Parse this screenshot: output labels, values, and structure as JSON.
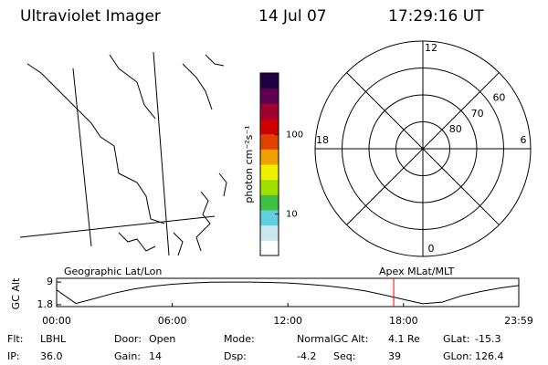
{
  "header": {
    "title": "Ultraviolet Imager",
    "date": "14 Jul 07",
    "time": "17:29:16 UT"
  },
  "colorbar": {
    "label": "photon cm⁻²s⁻¹",
    "log": true,
    "clim": [
      3,
      600
    ],
    "ticks": [
      10,
      100
    ]
  },
  "polar": {
    "rlim": [
      90,
      50
    ],
    "mlt_labels": [
      12,
      6,
      0,
      18
    ],
    "lat_labels": [
      80,
      70,
      60
    ]
  },
  "chart_data": {
    "type": "line",
    "ylabel": "GC Alt",
    "left_label": "Geographic Lat/Lon",
    "right_label": "Apex MLat/MLT",
    "x": [
      0,
      1,
      2,
      3,
      4,
      5,
      6,
      7,
      8,
      9,
      10,
      11,
      12,
      13,
      14,
      15,
      16,
      17,
      18,
      19,
      20,
      21,
      22,
      23,
      23.98
    ],
    "series": [
      {
        "color": "#000000",
        "values": [
          6.5,
          2.2,
          3.8,
          5.5,
          6.8,
          7.7,
          8.3,
          8.7,
          8.95,
          9.0,
          9.0,
          8.9,
          8.7,
          8.3,
          7.8,
          7.1,
          6.2,
          4.9,
          3.5,
          2.1,
          2.6,
          4.6,
          6.0,
          7.1,
          7.9
        ]
      }
    ],
    "marker_x": 17.49,
    "marker_color": "#ff0000",
    "xlim": [
      0,
      23.98
    ],
    "ylim": [
      1.2,
      10.2
    ],
    "xticks": [
      {
        "value": 0,
        "label": "00:00"
      },
      {
        "value": 6,
        "label": "06:00"
      },
      {
        "value": 12,
        "label": "12:00"
      },
      {
        "value": 18,
        "label": "18:00"
      },
      {
        "value": 23.98,
        "label": "23:59"
      }
    ],
    "yticks": [
      1.8,
      9.0
    ]
  },
  "footer": {
    "rows": [
      [
        {
          "label": "Flt:",
          "value": "LBHL"
        },
        {
          "label": "Door:",
          "value": "Open"
        },
        {
          "label": "Mode:",
          "value": "Normal"
        },
        {
          "label": "GC Alt:",
          "value": "4.1 Re"
        },
        {
          "label": "GLat:",
          "value": "-15.3"
        }
      ],
      [
        {
          "label": "IP:",
          "value": "36.0"
        },
        {
          "label": "Gain:",
          "value": "14"
        },
        {
          "label": "Dsp:",
          "value": "-4.2"
        },
        {
          "label": "Seq:",
          "value": "39"
        },
        {
          "label": "GLon:",
          "value": "126.4"
        }
      ]
    ]
  }
}
